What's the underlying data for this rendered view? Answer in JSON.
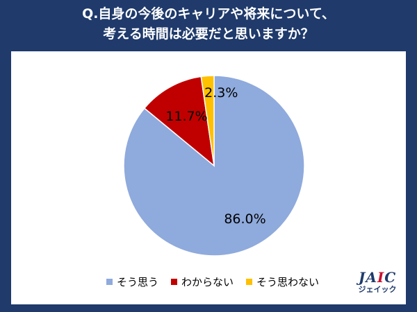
{
  "chart_data": {
    "type": "pie",
    "title": [
      "Q.自身の今後のキャリアや将来について、",
      "考える時間は必要だと思いますか？"
    ],
    "categories": [
      "そう思う",
      "わからない",
      "そう思わない"
    ],
    "values": [
      86.0,
      11.7,
      2.3
    ],
    "labels": [
      "86.0%",
      "11.7%",
      "2.3%"
    ],
    "colors": [
      "#8faadc",
      "#c00000",
      "#ffc000"
    ],
    "legend": "bottom"
  },
  "logo": {
    "brand_prefix": "JA",
    "brand_i": "I",
    "brand_suffix": "C",
    "sub": "ジェイック"
  }
}
